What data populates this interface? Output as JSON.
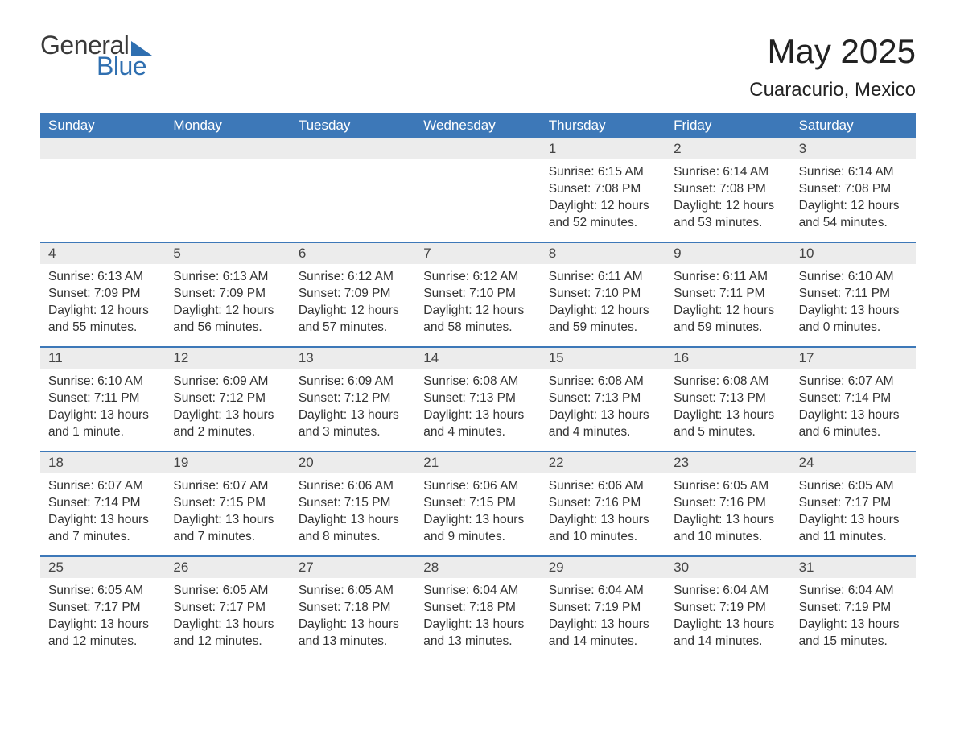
{
  "brand": {
    "word1": "General",
    "word2": "Blue"
  },
  "title": "May 2025",
  "location": "Cuaracurio, Mexico",
  "colors": {
    "header_bg": "#3d78b8",
    "header_text": "#ffffff",
    "daynum_bg": "#ececec",
    "rule": "#3d78b8",
    "brand_blue": "#2f6fb0",
    "body_text": "#333333",
    "page_bg": "#ffffff"
  },
  "typography": {
    "title_fontsize": 42,
    "location_fontsize": 24,
    "dow_fontsize": 17,
    "daynum_fontsize": 17,
    "body_fontsize": 15.5,
    "logo_fontsize": 32
  },
  "days_of_week": [
    "Sunday",
    "Monday",
    "Tuesday",
    "Wednesday",
    "Thursday",
    "Friday",
    "Saturday"
  ],
  "weeks": [
    [
      {
        "n": "",
        "sr": "",
        "ss": "",
        "dl": ""
      },
      {
        "n": "",
        "sr": "",
        "ss": "",
        "dl": ""
      },
      {
        "n": "",
        "sr": "",
        "ss": "",
        "dl": ""
      },
      {
        "n": "",
        "sr": "",
        "ss": "",
        "dl": ""
      },
      {
        "n": "1",
        "sr": "Sunrise: 6:15 AM",
        "ss": "Sunset: 7:08 PM",
        "dl": "Daylight: 12 hours and 52 minutes."
      },
      {
        "n": "2",
        "sr": "Sunrise: 6:14 AM",
        "ss": "Sunset: 7:08 PM",
        "dl": "Daylight: 12 hours and 53 minutes."
      },
      {
        "n": "3",
        "sr": "Sunrise: 6:14 AM",
        "ss": "Sunset: 7:08 PM",
        "dl": "Daylight: 12 hours and 54 minutes."
      }
    ],
    [
      {
        "n": "4",
        "sr": "Sunrise: 6:13 AM",
        "ss": "Sunset: 7:09 PM",
        "dl": "Daylight: 12 hours and 55 minutes."
      },
      {
        "n": "5",
        "sr": "Sunrise: 6:13 AM",
        "ss": "Sunset: 7:09 PM",
        "dl": "Daylight: 12 hours and 56 minutes."
      },
      {
        "n": "6",
        "sr": "Sunrise: 6:12 AM",
        "ss": "Sunset: 7:09 PM",
        "dl": "Daylight: 12 hours and 57 minutes."
      },
      {
        "n": "7",
        "sr": "Sunrise: 6:12 AM",
        "ss": "Sunset: 7:10 PM",
        "dl": "Daylight: 12 hours and 58 minutes."
      },
      {
        "n": "8",
        "sr": "Sunrise: 6:11 AM",
        "ss": "Sunset: 7:10 PM",
        "dl": "Daylight: 12 hours and 59 minutes."
      },
      {
        "n": "9",
        "sr": "Sunrise: 6:11 AM",
        "ss": "Sunset: 7:11 PM",
        "dl": "Daylight: 12 hours and 59 minutes."
      },
      {
        "n": "10",
        "sr": "Sunrise: 6:10 AM",
        "ss": "Sunset: 7:11 PM",
        "dl": "Daylight: 13 hours and 0 minutes."
      }
    ],
    [
      {
        "n": "11",
        "sr": "Sunrise: 6:10 AM",
        "ss": "Sunset: 7:11 PM",
        "dl": "Daylight: 13 hours and 1 minute."
      },
      {
        "n": "12",
        "sr": "Sunrise: 6:09 AM",
        "ss": "Sunset: 7:12 PM",
        "dl": "Daylight: 13 hours and 2 minutes."
      },
      {
        "n": "13",
        "sr": "Sunrise: 6:09 AM",
        "ss": "Sunset: 7:12 PM",
        "dl": "Daylight: 13 hours and 3 minutes."
      },
      {
        "n": "14",
        "sr": "Sunrise: 6:08 AM",
        "ss": "Sunset: 7:13 PM",
        "dl": "Daylight: 13 hours and 4 minutes."
      },
      {
        "n": "15",
        "sr": "Sunrise: 6:08 AM",
        "ss": "Sunset: 7:13 PM",
        "dl": "Daylight: 13 hours and 4 minutes."
      },
      {
        "n": "16",
        "sr": "Sunrise: 6:08 AM",
        "ss": "Sunset: 7:13 PM",
        "dl": "Daylight: 13 hours and 5 minutes."
      },
      {
        "n": "17",
        "sr": "Sunrise: 6:07 AM",
        "ss": "Sunset: 7:14 PM",
        "dl": "Daylight: 13 hours and 6 minutes."
      }
    ],
    [
      {
        "n": "18",
        "sr": "Sunrise: 6:07 AM",
        "ss": "Sunset: 7:14 PM",
        "dl": "Daylight: 13 hours and 7 minutes."
      },
      {
        "n": "19",
        "sr": "Sunrise: 6:07 AM",
        "ss": "Sunset: 7:15 PM",
        "dl": "Daylight: 13 hours and 7 minutes."
      },
      {
        "n": "20",
        "sr": "Sunrise: 6:06 AM",
        "ss": "Sunset: 7:15 PM",
        "dl": "Daylight: 13 hours and 8 minutes."
      },
      {
        "n": "21",
        "sr": "Sunrise: 6:06 AM",
        "ss": "Sunset: 7:15 PM",
        "dl": "Daylight: 13 hours and 9 minutes."
      },
      {
        "n": "22",
        "sr": "Sunrise: 6:06 AM",
        "ss": "Sunset: 7:16 PM",
        "dl": "Daylight: 13 hours and 10 minutes."
      },
      {
        "n": "23",
        "sr": "Sunrise: 6:05 AM",
        "ss": "Sunset: 7:16 PM",
        "dl": "Daylight: 13 hours and 10 minutes."
      },
      {
        "n": "24",
        "sr": "Sunrise: 6:05 AM",
        "ss": "Sunset: 7:17 PM",
        "dl": "Daylight: 13 hours and 11 minutes."
      }
    ],
    [
      {
        "n": "25",
        "sr": "Sunrise: 6:05 AM",
        "ss": "Sunset: 7:17 PM",
        "dl": "Daylight: 13 hours and 12 minutes."
      },
      {
        "n": "26",
        "sr": "Sunrise: 6:05 AM",
        "ss": "Sunset: 7:17 PM",
        "dl": "Daylight: 13 hours and 12 minutes."
      },
      {
        "n": "27",
        "sr": "Sunrise: 6:05 AM",
        "ss": "Sunset: 7:18 PM",
        "dl": "Daylight: 13 hours and 13 minutes."
      },
      {
        "n": "28",
        "sr": "Sunrise: 6:04 AM",
        "ss": "Sunset: 7:18 PM",
        "dl": "Daylight: 13 hours and 13 minutes."
      },
      {
        "n": "29",
        "sr": "Sunrise: 6:04 AM",
        "ss": "Sunset: 7:19 PM",
        "dl": "Daylight: 13 hours and 14 minutes."
      },
      {
        "n": "30",
        "sr": "Sunrise: 6:04 AM",
        "ss": "Sunset: 7:19 PM",
        "dl": "Daylight: 13 hours and 14 minutes."
      },
      {
        "n": "31",
        "sr": "Sunrise: 6:04 AM",
        "ss": "Sunset: 7:19 PM",
        "dl": "Daylight: 13 hours and 15 minutes."
      }
    ]
  ]
}
